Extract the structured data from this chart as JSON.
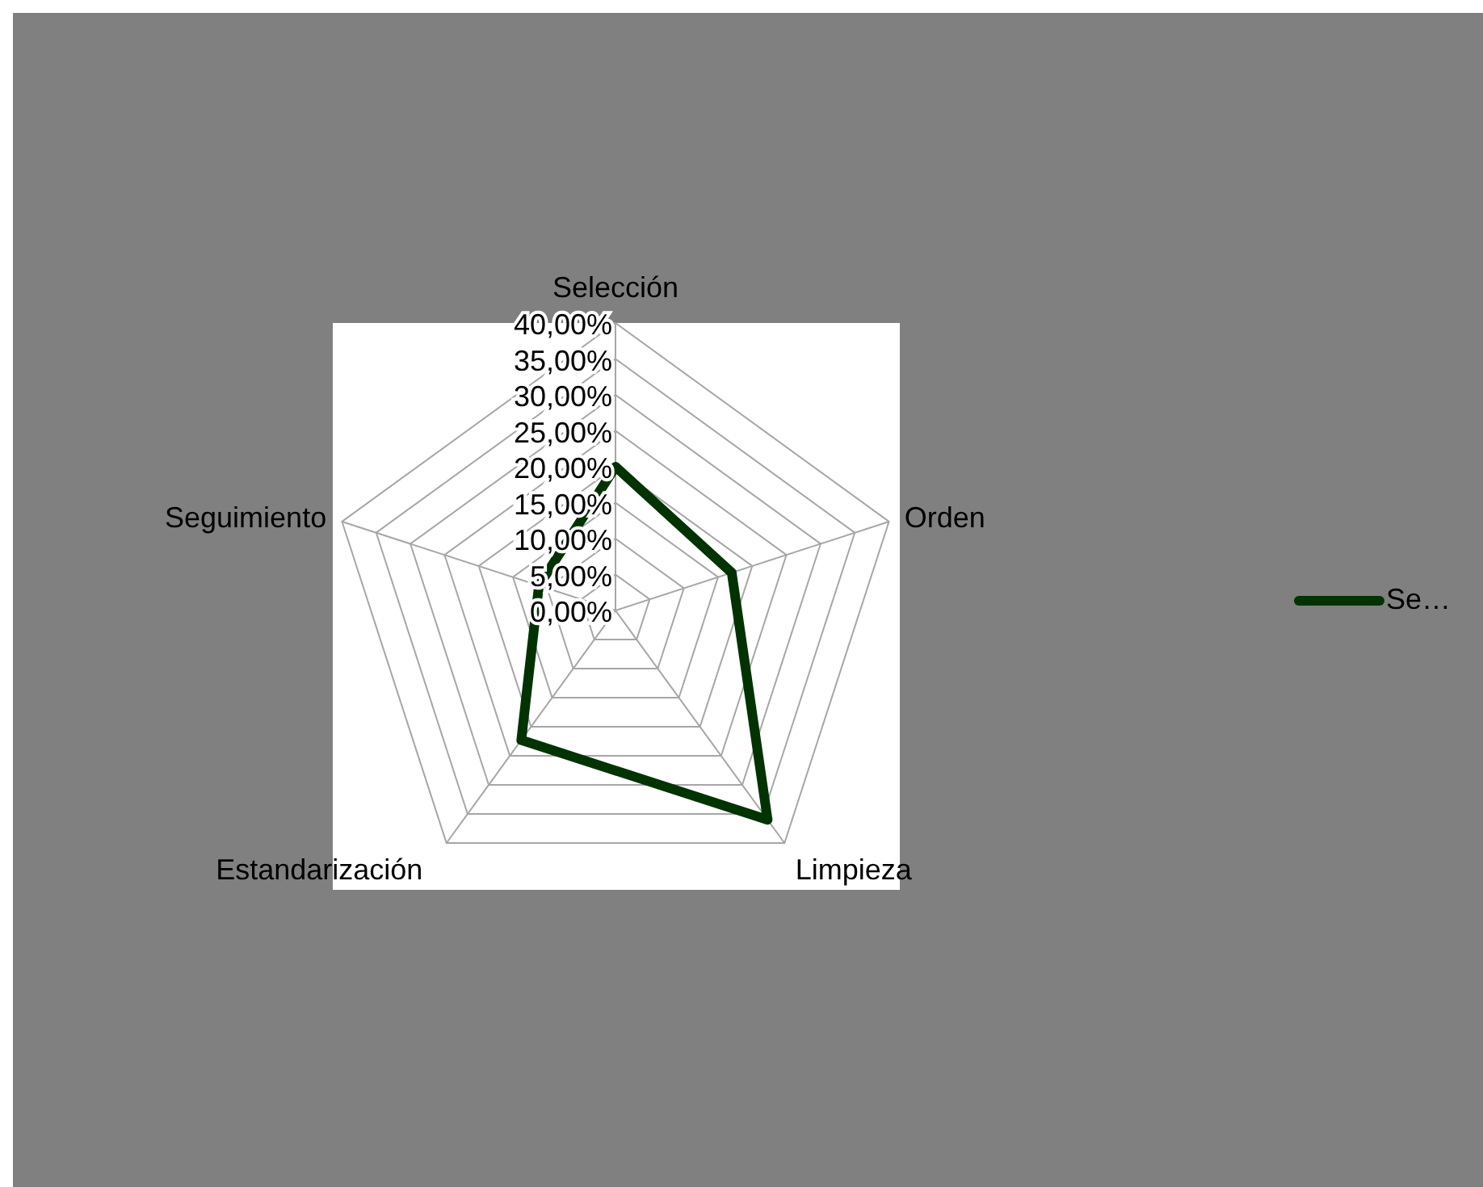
{
  "chart_data": {
    "type": "radar",
    "categories": [
      "Selección",
      "Orden",
      "Limpieza",
      "Estandarización",
      "Seguimiento"
    ],
    "series": [
      {
        "name": "Se…",
        "color": "#003300",
        "values": [
          20,
          17,
          36,
          22.3,
          11.2
        ]
      }
    ],
    "ylim": [
      0,
      40
    ],
    "yticks": [
      {
        "value": 0,
        "label": "0,00%"
      },
      {
        "value": 5,
        "label": "5,00%"
      },
      {
        "value": 10,
        "label": "10,00%"
      },
      {
        "value": 15,
        "label": "15,00%"
      },
      {
        "value": 20,
        "label": "20,00%"
      },
      {
        "value": 25,
        "label": "25,00%"
      },
      {
        "value": 30,
        "label": "30,00%"
      },
      {
        "value": 35,
        "label": "35,00%"
      },
      {
        "value": 40,
        "label": "40,00%"
      }
    ],
    "grid": true,
    "legend": "right",
    "marker": "none"
  }
}
